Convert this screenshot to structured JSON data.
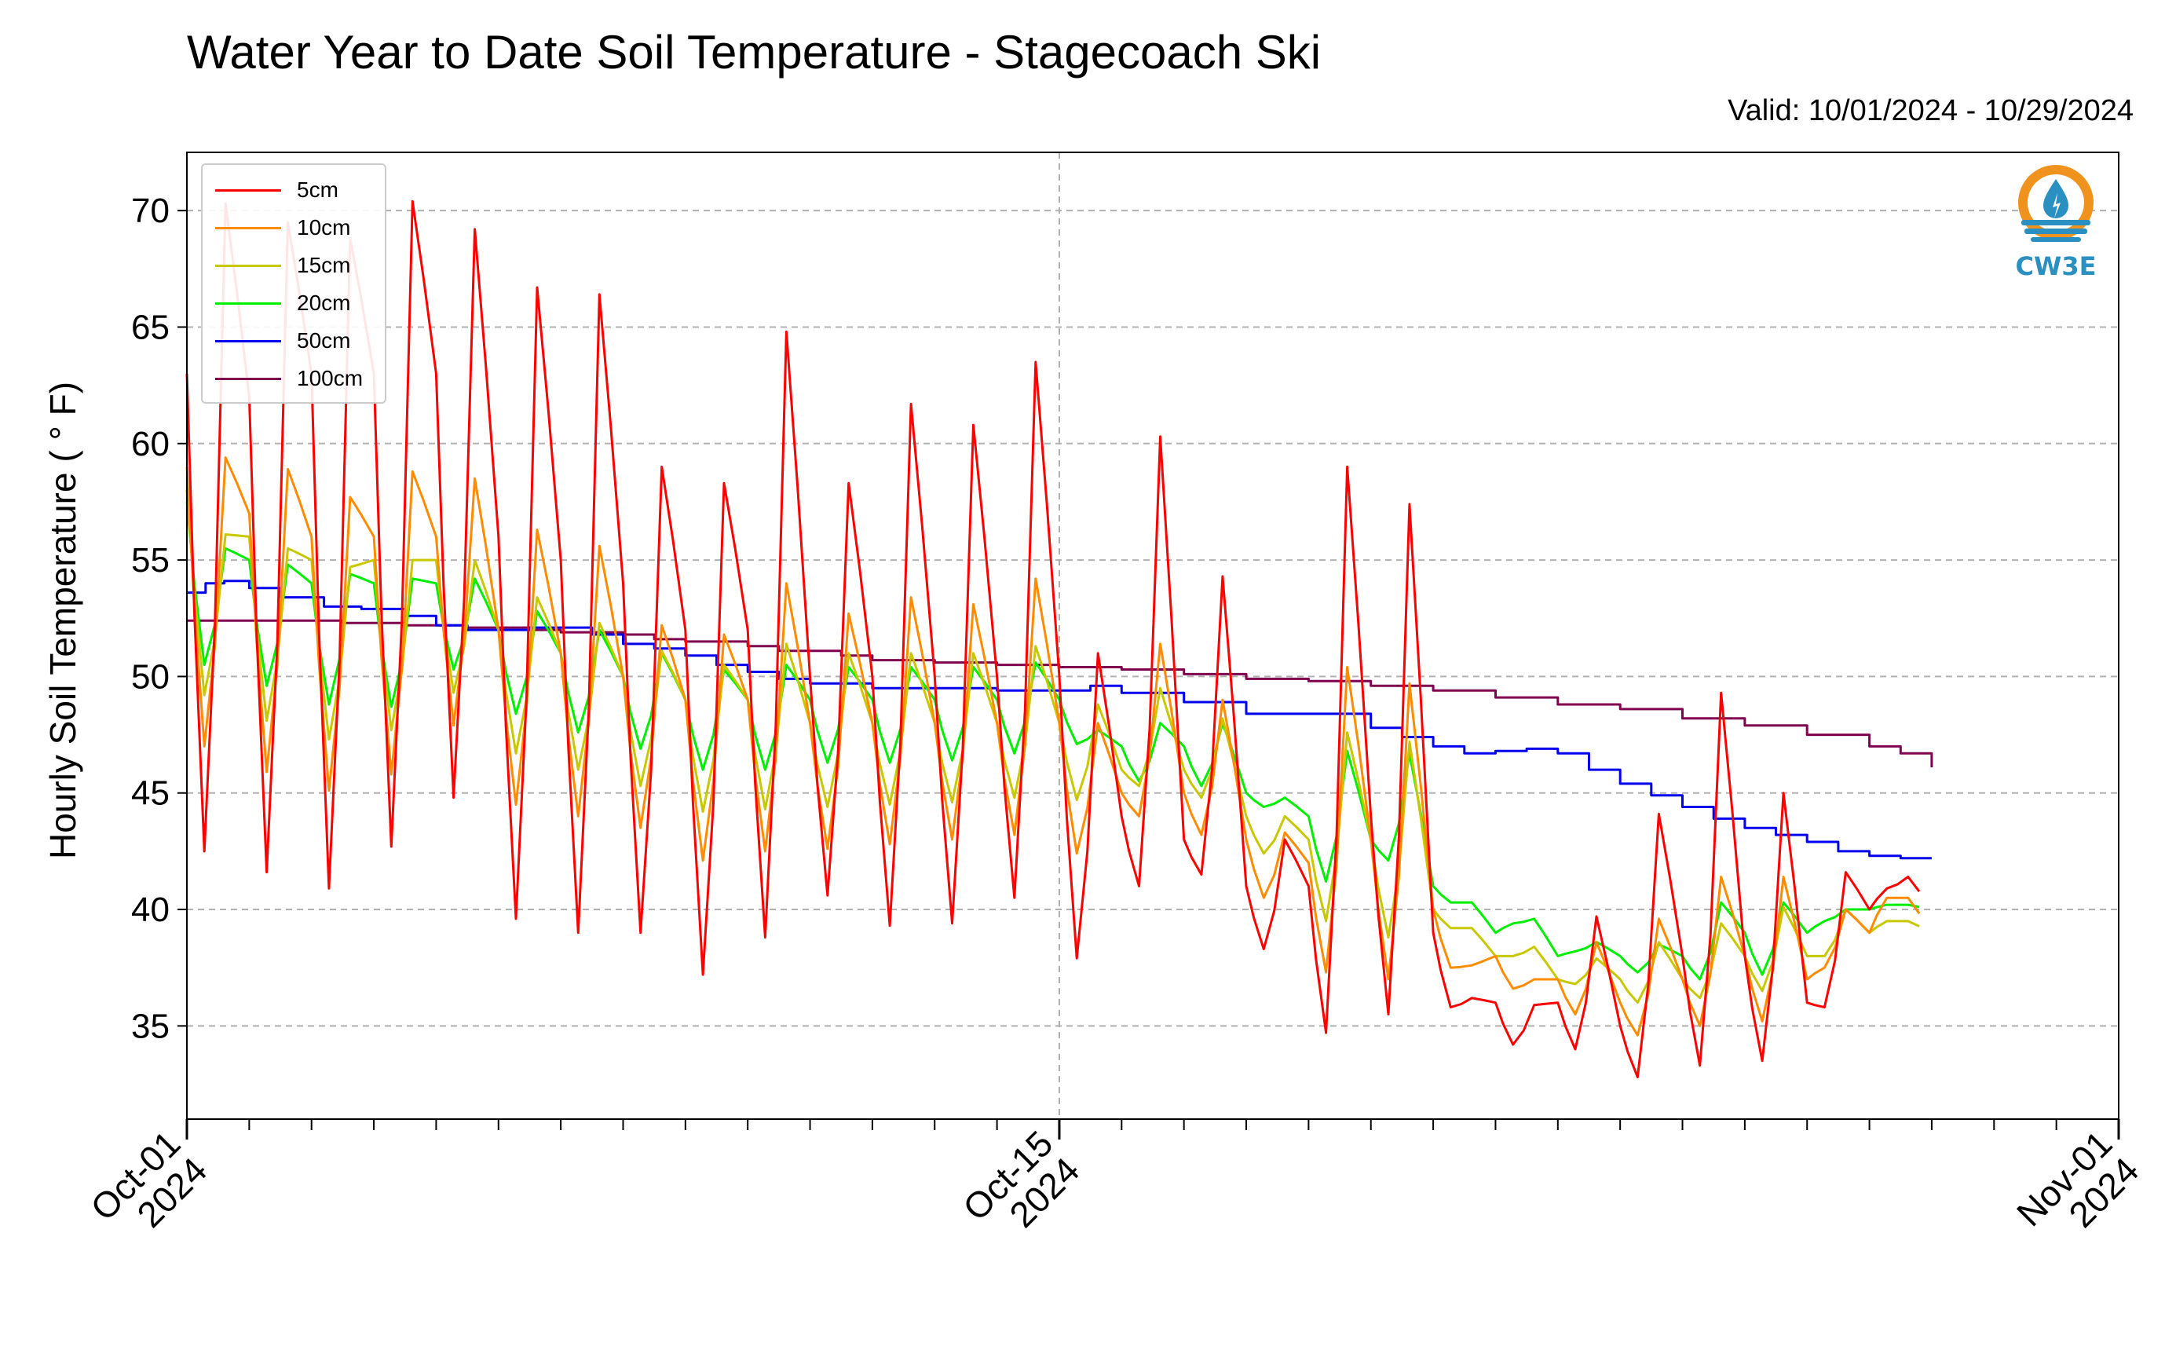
{
  "title": "Water Year to Date Soil Temperature - Stagecoach Ski",
  "valid": "Valid: 10/01/2024 - 10/29/2024",
  "logo_text": "CW3E",
  "colors": {
    "5cm": "#ff0000",
    "10cm": "#ff8c00",
    "15cm": "#c8c800",
    "20cm": "#00ee00",
    "50cm": "#0000ee",
    "100cm": "#800050",
    "logo_orange": "#f0931e",
    "logo_blue": "#2a8fc1"
  },
  "chart_data": {
    "type": "line",
    "title": "Water Year to Date Soil Temperature - Stagecoach Ski",
    "xlabel": "",
    "ylabel": "Hourly Soil Temperature ($^\\circ$F)",
    "ylabel_display": "Hourly Soil Temperature ( ° F)",
    "x_units": "days since 2024-10-01",
    "xlim": [
      0,
      31
    ],
    "ylim": [
      31,
      72.5
    ],
    "yticks": [
      35,
      40,
      45,
      50,
      55,
      60,
      65,
      70
    ],
    "xtick_labels": [
      {
        "x": 0,
        "line1": "Oct-01",
        "line2": "2024"
      },
      {
        "x": 14,
        "line1": "Oct-15",
        "line2": "2024"
      },
      {
        "x": 31,
        "line1": "Nov-01",
        "line2": "2024"
      }
    ],
    "grid": true,
    "legend_position": "upper-left",
    "series": [
      {
        "name": "5cm",
        "color": "#ff0000",
        "daily": [
          [
            63,
            42.5,
            70.3
          ],
          [
            62,
            41.6,
            69.5
          ],
          [
            63,
            40.9,
            68.8
          ],
          [
            63,
            42.7,
            70.4
          ],
          [
            63,
            44.8,
            69.2
          ],
          [
            56,
            39.6,
            66.7
          ],
          [
            55,
            39.0,
            66.4
          ],
          [
            54,
            39.0,
            59.0
          ],
          [
            52,
            37.2,
            58.3
          ],
          [
            52,
            38.8,
            64.8
          ],
          [
            50,
            40.6,
            58.3
          ],
          [
            50,
            39.3,
            61.7
          ],
          [
            50,
            39.4,
            60.8
          ],
          [
            50,
            40.5,
            63.5
          ],
          [
            50,
            37.9,
            51.0
          ],
          [
            44,
            41.0,
            60.3
          ],
          [
            43,
            41.5,
            54.3
          ],
          [
            41,
            38.3,
            43.0
          ],
          [
            41,
            34.7,
            59.0
          ],
          [
            44,
            35.5,
            57.4
          ],
          [
            39,
            35.8,
            36.2
          ],
          [
            36,
            34.2,
            35.9
          ],
          [
            36,
            34.0,
            39.7
          ],
          [
            35,
            32.8,
            44.1
          ],
          [
            38,
            33.3,
            49.3
          ],
          [
            38,
            33.5,
            45.0
          ],
          [
            36,
            35.8,
            41.6
          ],
          [
            40,
            40.9,
            41.4
          ]
        ]
      },
      {
        "name": "10cm",
        "color": "#ff8c00",
        "daily": [
          [
            59,
            47.0,
            59.4
          ],
          [
            57,
            45.9,
            58.9
          ],
          [
            56,
            45.1,
            57.7
          ],
          [
            56,
            45.8,
            58.8
          ],
          [
            56,
            47.9,
            58.5
          ],
          [
            52,
            44.5,
            56.3
          ],
          [
            51,
            44.0,
            55.6
          ],
          [
            50,
            43.5,
            52.2
          ],
          [
            49,
            42.1,
            51.8
          ],
          [
            49,
            42.5,
            54.0
          ],
          [
            48,
            42.6,
            52.7
          ],
          [
            48,
            42.8,
            53.4
          ],
          [
            48,
            43.0,
            53.1
          ],
          [
            48,
            43.2,
            54.2
          ],
          [
            48,
            42.4,
            48.0
          ],
          [
            45,
            44.0,
            51.4
          ],
          [
            45,
            43.2,
            49.0
          ],
          [
            43,
            40.5,
            43.3
          ],
          [
            42,
            37.3,
            50.4
          ],
          [
            43,
            37.0,
            49.7
          ],
          [
            40,
            37.5,
            37.6
          ],
          [
            38,
            36.6,
            37.0
          ],
          [
            37,
            35.5,
            38.6
          ],
          [
            36,
            34.6,
            39.6
          ],
          [
            37,
            35.0,
            41.4
          ],
          [
            38,
            35.2,
            41.4
          ],
          [
            37,
            37.5,
            40.0
          ],
          [
            39,
            40.5,
            40.5
          ]
        ]
      },
      {
        "name": "15cm",
        "color": "#c8c800",
        "daily": [
          [
            58,
            49.2,
            56.1
          ],
          [
            56,
            48.1,
            55.5
          ],
          [
            55,
            47.3,
            54.7
          ],
          [
            55,
            47.7,
            55.0
          ],
          [
            55,
            49.3,
            55.0
          ],
          [
            52,
            46.7,
            53.4
          ],
          [
            51,
            46.0,
            52.3
          ],
          [
            50,
            45.3,
            51.1
          ],
          [
            49,
            44.2,
            50.5
          ],
          [
            49,
            44.3,
            51.4
          ],
          [
            48,
            44.4,
            51.0
          ],
          [
            48,
            44.5,
            51.0
          ],
          [
            48,
            44.6,
            51.0
          ],
          [
            48,
            44.8,
            51.3
          ],
          [
            48,
            44.7,
            48.8
          ],
          [
            46,
            45.3,
            49.5
          ],
          [
            46,
            44.8,
            48.2
          ],
          [
            44,
            42.4,
            44.0
          ],
          [
            43,
            39.5,
            47.6
          ],
          [
            43,
            38.8,
            47.2
          ],
          [
            40,
            39.2,
            39.2
          ],
          [
            38,
            38.0,
            38.4
          ],
          [
            37,
            36.8,
            37.9
          ],
          [
            37,
            36.0,
            38.6
          ],
          [
            37,
            36.2,
            39.4
          ],
          [
            38,
            36.5,
            40.1
          ],
          [
            38,
            38.0,
            40.0
          ],
          [
            39,
            39.5,
            39.5
          ]
        ]
      },
      {
        "name": "20cm",
        "color": "#00ee00",
        "daily": [
          [
            57.5,
            50.5,
            55.5
          ],
          [
            55,
            49.6,
            54.8
          ],
          [
            54,
            48.8,
            54.4
          ],
          [
            54,
            48.7,
            54.2
          ],
          [
            54,
            50.3,
            54.2
          ],
          [
            52,
            48.4,
            52.8
          ],
          [
            51,
            47.6,
            52.0
          ],
          [
            50,
            46.9,
            51.0
          ],
          [
            49,
            46.0,
            50.3
          ],
          [
            49,
            46.0,
            50.5
          ],
          [
            49,
            46.3,
            50.4
          ],
          [
            49,
            46.3,
            50.4
          ],
          [
            49,
            46.4,
            50.4
          ],
          [
            49,
            46.7,
            50.6
          ],
          [
            49,
            47.1,
            47.7
          ],
          [
            47,
            45.5,
            48.0
          ],
          [
            47,
            45.3,
            48.0
          ],
          [
            45,
            44.4,
            44.8
          ],
          [
            44,
            41.2,
            46.8
          ],
          [
            43,
            42.1,
            46.7
          ],
          [
            41,
            40.3,
            40.3
          ],
          [
            39,
            39.4,
            39.6
          ],
          [
            38,
            38.2,
            38.6
          ],
          [
            38,
            37.3,
            38.5
          ],
          [
            38,
            37.0,
            40.3
          ],
          [
            39,
            37.2,
            40.3
          ],
          [
            39,
            39.5,
            40.0
          ],
          [
            40,
            40.2,
            40.2
          ]
        ]
      },
      {
        "name": "50cm",
        "color": "#0000ee",
        "steps": [
          [
            0,
            53.6
          ],
          [
            0.3,
            54.0
          ],
          [
            0.6,
            54.1
          ],
          [
            1.0,
            53.8
          ],
          [
            1.5,
            53.4
          ],
          [
            2.2,
            53.0
          ],
          [
            2.8,
            52.9
          ],
          [
            3.5,
            52.6
          ],
          [
            4.0,
            52.2
          ],
          [
            4.5,
            52.0
          ],
          [
            5.5,
            52.1
          ],
          [
            6.5,
            51.8
          ],
          [
            7.0,
            51.4
          ],
          [
            7.5,
            51.2
          ],
          [
            8.0,
            50.9
          ],
          [
            8.5,
            50.5
          ],
          [
            9.0,
            50.2
          ],
          [
            9.5,
            49.9
          ],
          [
            10.0,
            49.7
          ],
          [
            11.0,
            49.5
          ],
          [
            12.0,
            49.5
          ],
          [
            13.0,
            49.4
          ],
          [
            14.0,
            49.4
          ],
          [
            14.5,
            49.6
          ],
          [
            15.0,
            49.3
          ],
          [
            16.0,
            48.9
          ],
          [
            17.0,
            48.4
          ],
          [
            18.0,
            48.4
          ],
          [
            19.0,
            47.8
          ],
          [
            19.5,
            47.4
          ],
          [
            20.0,
            47.0
          ],
          [
            20.5,
            46.7
          ],
          [
            21.0,
            46.8
          ],
          [
            21.5,
            46.9
          ],
          [
            22.0,
            46.7
          ],
          [
            22.5,
            46.0
          ],
          [
            23.0,
            45.4
          ],
          [
            23.5,
            44.9
          ],
          [
            24.0,
            44.4
          ],
          [
            24.5,
            43.9
          ],
          [
            25.0,
            43.5
          ],
          [
            25.5,
            43.2
          ],
          [
            26.0,
            42.9
          ],
          [
            26.5,
            42.5
          ],
          [
            27.0,
            42.3
          ],
          [
            27.5,
            42.2
          ],
          [
            28.0,
            42.2
          ]
        ]
      },
      {
        "name": "100cm",
        "color": "#800050",
        "steps": [
          [
            0,
            52.4
          ],
          [
            1.5,
            52.4
          ],
          [
            2.5,
            52.3
          ],
          [
            3.5,
            52.2
          ],
          [
            4.5,
            52.1
          ],
          [
            5.5,
            52.0
          ],
          [
            6.0,
            51.9
          ],
          [
            7.0,
            51.8
          ],
          [
            7.5,
            51.6
          ],
          [
            8.0,
            51.5
          ],
          [
            9.0,
            51.3
          ],
          [
            9.5,
            51.1
          ],
          [
            10.5,
            50.9
          ],
          [
            11.0,
            50.7
          ],
          [
            12.0,
            50.6
          ],
          [
            13.0,
            50.5
          ],
          [
            14.0,
            50.4
          ],
          [
            15.0,
            50.3
          ],
          [
            16.0,
            50.1
          ],
          [
            17.0,
            49.9
          ],
          [
            18.0,
            49.8
          ],
          [
            19.0,
            49.6
          ],
          [
            20.0,
            49.4
          ],
          [
            21.0,
            49.1
          ],
          [
            22.0,
            48.8
          ],
          [
            23.0,
            48.6
          ],
          [
            24.0,
            48.2
          ],
          [
            25.0,
            47.9
          ],
          [
            26.0,
            47.5
          ],
          [
            27.0,
            47.0
          ],
          [
            27.5,
            46.7
          ],
          [
            28.0,
            46.1
          ]
        ]
      }
    ]
  }
}
